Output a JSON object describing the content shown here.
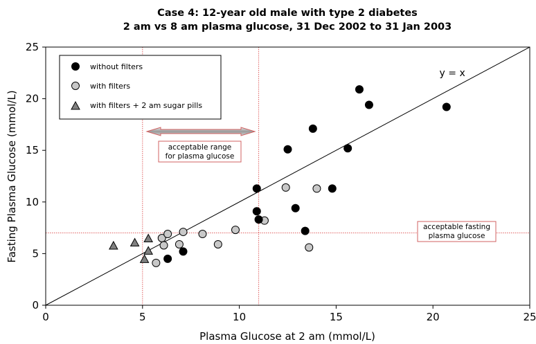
{
  "chart_data": {
    "type": "scatter",
    "title": "Case 4:  12-year old male with type 2 diabetes",
    "subtitle": "2 am vs 8 am plasma glucose, 31 Dec 2002 to 31 Jan 2003",
    "xlabel": "Plasma Glucose at 2 am (mmol/L)",
    "ylabel": "Fasting Plasma Glucose (mmol/L)",
    "xlim": [
      0,
      25
    ],
    "ylim": [
      0,
      25
    ],
    "xticks": [
      0,
      5,
      10,
      15,
      20,
      25
    ],
    "yticks": [
      0,
      5,
      10,
      15,
      20,
      25
    ],
    "grid": false,
    "legend_position": "top-left",
    "series": [
      {
        "name": "without filters",
        "marker": "circle",
        "color": "#000000",
        "x": [
          6.3,
          7.1,
          10.9,
          10.9,
          11.0,
          12.5,
          12.9,
          13.4,
          13.8,
          14.8,
          15.6,
          16.2,
          16.7,
          20.7
        ],
        "y": [
          4.5,
          5.2,
          11.3,
          9.1,
          8.3,
          15.1,
          9.4,
          7.2,
          17.1,
          11.3,
          15.2,
          20.9,
          19.4,
          19.2
        ]
      },
      {
        "name": "with filters",
        "marker": "circle",
        "color": "#c8c8c8",
        "x": [
          5.7,
          6.0,
          6.1,
          6.3,
          6.9,
          7.1,
          8.1,
          8.9,
          9.8,
          11.3,
          12.4,
          13.6,
          14.0
        ],
        "y": [
          4.1,
          6.5,
          5.8,
          6.9,
          5.9,
          7.1,
          6.9,
          5.9,
          7.3,
          8.2,
          11.4,
          5.6,
          11.3
        ]
      },
      {
        "name": "with filters + 2 am sugar pills",
        "marker": "triangle",
        "color": "#808080",
        "x": [
          3.5,
          4.6,
          5.1,
          5.3,
          5.3
        ],
        "y": [
          5.8,
          6.1,
          4.5,
          5.3,
          6.5
        ]
      }
    ],
    "reference_lines": {
      "identity_label": "y = x",
      "vertical": [
        5,
        11
      ],
      "horizontal": [
        7
      ],
      "color": "#e06060"
    },
    "annotations": {
      "range_label_line1": "acceptable range",
      "range_label_line2": "for plasma glucose",
      "fasting_label_line1": "acceptable fasting",
      "fasting_label_line2": "plasma glucose"
    }
  }
}
